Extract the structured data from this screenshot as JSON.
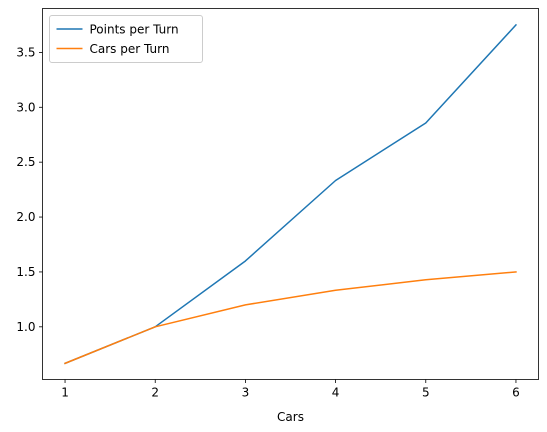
{
  "chart_data": {
    "type": "line",
    "title": "",
    "xlabel": "Cars",
    "ylabel": "",
    "x": [
      1,
      2,
      3,
      4,
      5,
      6
    ],
    "xticks": [
      "1",
      "2",
      "3",
      "4",
      "5",
      "6"
    ],
    "yticks": [
      "1.0",
      "1.5",
      "2.0",
      "2.5",
      "3.0",
      "3.5"
    ],
    "xlim": [
      0.75,
      6.25
    ],
    "ylim": [
      0.52,
      3.9
    ],
    "grid": false,
    "legend_position": "top-left",
    "series": [
      {
        "name": "Points per Turn",
        "color": "#1f77b4",
        "values": [
          0.667,
          1.0,
          1.6,
          2.333,
          2.857,
          3.75
        ]
      },
      {
        "name": "Cars per Turn",
        "color": "#ff7f0e",
        "values": [
          0.667,
          1.0,
          1.2,
          1.333,
          1.429,
          1.5
        ]
      }
    ]
  }
}
